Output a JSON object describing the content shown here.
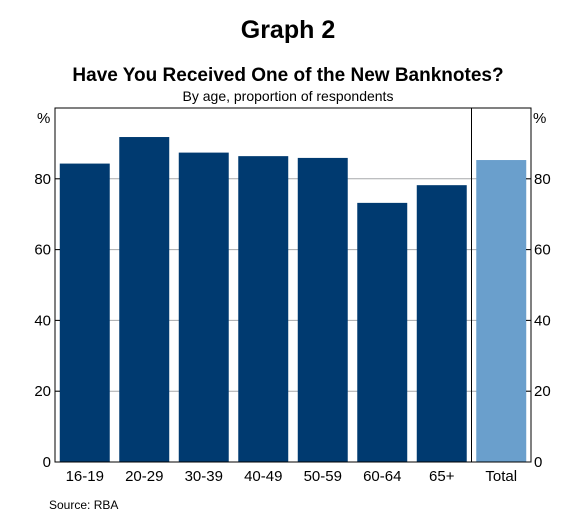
{
  "graph_label": "Graph 2",
  "chart_data": {
    "type": "bar",
    "title": "Have You Received One of the New Banknotes?",
    "subtitle": "By age, proportion of respondents",
    "unit_left": "%",
    "unit_right": "%",
    "source": "Source:   RBA",
    "categories": [
      "16-19",
      "20-29",
      "30-39",
      "40-49",
      "50-59",
      "60-64",
      "65+",
      "Total"
    ],
    "values": [
      84.3,
      91.8,
      87.4,
      86.4,
      85.9,
      73.2,
      78.2,
      85.3
    ],
    "ylim": [
      0,
      100
    ],
    "yticks": [
      0,
      20,
      40,
      60,
      80
    ],
    "grid": true,
    "colors": {
      "bar": "#003A70",
      "total_bar": "#6A9FCC",
      "grid": "#a7a9ac",
      "divider": "#000000"
    }
  }
}
